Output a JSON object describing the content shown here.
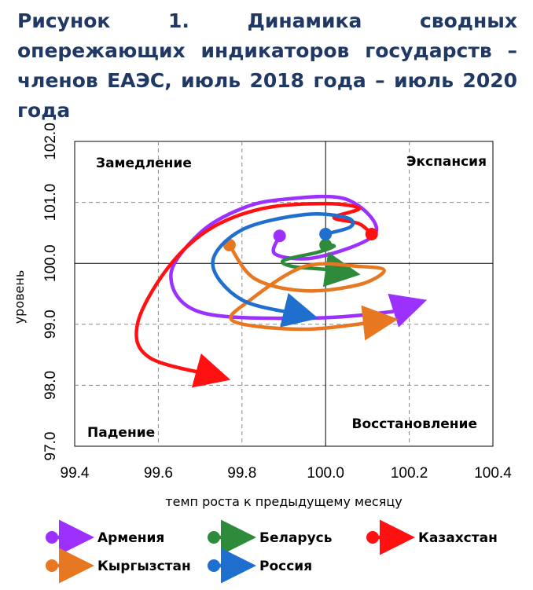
{
  "title": "Рисунок 1. Динамика сводных опережающих индикаторов государств – членов ЕАЭС, июль 2018 года – июль 2020 года",
  "chart_data": {
    "type": "line",
    "xlabel": "темп роста к предыдущему месяцу",
    "ylabel": "уровень",
    "xlim": [
      99.4,
      100.4
    ],
    "ylim": [
      97.0,
      102.0
    ],
    "x_ticks": [
      "99.4",
      "99.6",
      "99.8",
      "100.0",
      "100.2",
      "100.4"
    ],
    "y_ticks": [
      "97.0",
      "98.0",
      "99.0",
      "100.0",
      "101.0",
      "102.0"
    ],
    "grid": true,
    "legend_position": "bottom",
    "quadrants": {
      "top_left": "Замедление",
      "top_right": "Экспансия",
      "bottom_left": "Падение",
      "bottom_right": "Восстановление"
    },
    "series": [
      {
        "name": "Армения",
        "color": "#9b30ff",
        "points": [
          [
            99.89,
            100.45
          ],
          [
            99.88,
            100.15
          ],
          [
            99.98,
            100.1
          ],
          [
            100.12,
            100.5
          ],
          [
            100.05,
            101.05
          ],
          [
            99.9,
            101.05
          ],
          [
            99.8,
            100.9
          ],
          [
            99.7,
            100.5
          ],
          [
            99.63,
            99.8
          ],
          [
            99.7,
            99.2
          ],
          [
            99.95,
            99.1
          ],
          [
            100.15,
            99.2
          ],
          [
            100.21,
            99.33
          ]
        ]
      },
      {
        "name": "Беларусь",
        "color": "#2e8b3c",
        "points": [
          [
            100.0,
            100.3
          ],
          [
            100.02,
            100.28
          ],
          [
            99.98,
            100.18
          ],
          [
            99.9,
            100.05
          ],
          [
            99.92,
            99.95
          ],
          [
            100.0,
            99.9
          ],
          [
            100.05,
            99.85
          ]
        ]
      },
      {
        "name": "Казахстан",
        "color": "#ff1111",
        "points": [
          [
            100.11,
            100.48
          ],
          [
            100.08,
            100.65
          ],
          [
            100.02,
            100.75
          ],
          [
            100.08,
            100.9
          ],
          [
            100.0,
            100.98
          ],
          [
            99.85,
            100.9
          ],
          [
            99.72,
            100.55
          ],
          [
            99.62,
            99.9
          ],
          [
            99.55,
            99.0
          ],
          [
            99.58,
            98.45
          ],
          [
            99.74,
            98.15
          ]
        ]
      },
      {
        "name": "Кыргызстан",
        "color": "#e87722",
        "points": [
          [
            99.77,
            100.3
          ],
          [
            99.83,
            99.75
          ],
          [
            99.95,
            99.55
          ],
          [
            100.08,
            99.65
          ],
          [
            100.14,
            99.88
          ],
          [
            100.08,
            99.95
          ],
          [
            99.95,
            99.95
          ],
          [
            99.82,
            99.4
          ],
          [
            99.78,
            99.05
          ],
          [
            99.95,
            98.92
          ],
          [
            100.14,
            99.06
          ]
        ]
      },
      {
        "name": "Россия",
        "color": "#1f6fcf",
        "points": [
          [
            100.0,
            100.48
          ],
          [
            100.06,
            100.6
          ],
          [
            100.05,
            100.75
          ],
          [
            99.95,
            100.8
          ],
          [
            99.8,
            100.55
          ],
          [
            99.73,
            100.0
          ],
          [
            99.8,
            99.4
          ],
          [
            99.95,
            99.15
          ]
        ]
      }
    ]
  }
}
